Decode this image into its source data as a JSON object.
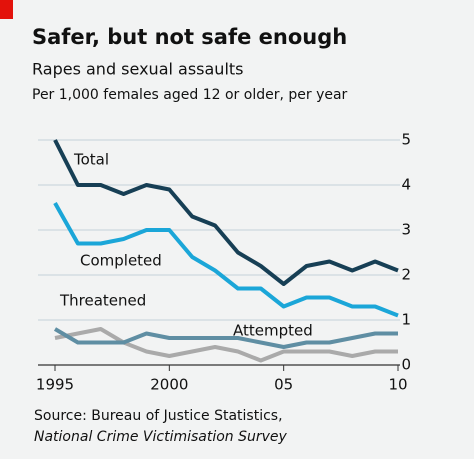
{
  "chart_data": {
    "type": "line",
    "title": "Safer, but not safe enough",
    "subtitle": "Rapes and sexual assaults",
    "y_axis_label": "Per 1,000 females aged 12 or older, per year",
    "x": [
      1995,
      1996,
      1997,
      1998,
      1999,
      2000,
      2001,
      2002,
      2003,
      2004,
      2005,
      2006,
      2007,
      2008,
      2009,
      2010
    ],
    "series": [
      {
        "name": "Total",
        "color": "#173f55",
        "values": [
          5.0,
          4.0,
          4.0,
          3.8,
          4.0,
          3.9,
          3.3,
          3.1,
          2.5,
          2.2,
          1.8,
          2.2,
          2.3,
          2.1,
          2.3,
          2.1
        ]
      },
      {
        "name": "Completed",
        "color": "#1ba6d8",
        "values": [
          3.6,
          2.7,
          2.7,
          2.8,
          3.0,
          3.0,
          2.4,
          2.1,
          1.7,
          1.7,
          1.3,
          1.5,
          1.5,
          1.3,
          1.3,
          1.1
        ]
      },
      {
        "name": "Threatened",
        "color": "#aaaaaa",
        "values": [
          0.6,
          0.7,
          0.8,
          0.5,
          0.3,
          0.2,
          0.3,
          0.4,
          0.3,
          0.1,
          0.3,
          0.3,
          0.3,
          0.2,
          0.3,
          0.3
        ]
      },
      {
        "name": "Attempted",
        "color": "#5f8ea3",
        "values": [
          0.8,
          0.5,
          0.5,
          0.5,
          0.7,
          0.6,
          0.6,
          0.6,
          0.6,
          0.5,
          0.4,
          0.5,
          0.5,
          0.6,
          0.7,
          0.7
        ]
      }
    ],
    "xlim": [
      1995,
      2010
    ],
    "xticks": [
      1995,
      2000,
      {
        "value": 2005,
        "label": "05"
      },
      {
        "value": 2010,
        "label": "10"
      }
    ],
    "ylim": [
      0,
      5
    ],
    "yticks": [
      0,
      1,
      2,
      3,
      4,
      5
    ],
    "grid": true,
    "source": [
      "Source: Bureau of Justice Statistics,",
      "National Crime Victimisation Survey"
    ]
  }
}
